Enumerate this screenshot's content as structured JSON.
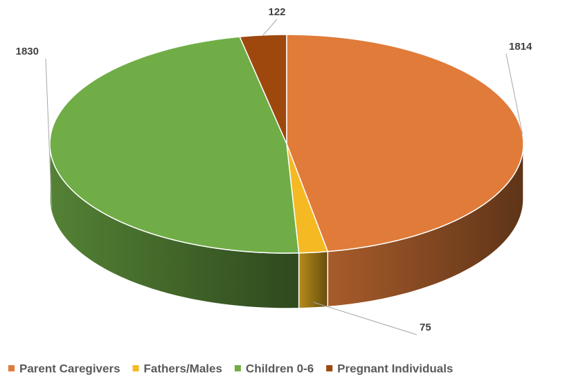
{
  "chart_data": {
    "type": "pie3d",
    "categories": [
      "Parent Caregivers",
      "Fathers/Males",
      "Children 0-6",
      "Pregnant Individuals"
    ],
    "values": [
      1814,
      75,
      1830,
      122
    ],
    "colors": [
      "#e07b39",
      "#f4b923",
      "#70ad47",
      "#9e480e"
    ],
    "legend": "bottom"
  }
}
